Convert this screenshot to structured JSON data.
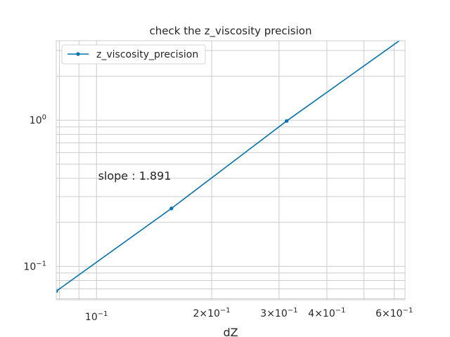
{
  "chart_data": {
    "type": "line",
    "title": "check the z_viscosity precision",
    "xlabel": "dZ",
    "ylabel": "",
    "xscale": "log",
    "yscale": "log",
    "xlim": [
      0.0785,
      0.64
    ],
    "ylim": [
      0.059,
      3.5
    ],
    "grid": "on (major and minor)",
    "legend_position": "top-left",
    "x_ticks": [
      {
        "value": 0.1,
        "base": "10",
        "exp": "−1"
      },
      {
        "value": 0.2,
        "base": "2×10",
        "exp": "−1"
      },
      {
        "value": 0.3,
        "base": "3×10",
        "exp": "−1"
      },
      {
        "value": 0.4,
        "base": "4×10",
        "exp": "−1"
      },
      {
        "value": 0.6,
        "base": "6×10",
        "exp": "−1"
      }
    ],
    "y_ticks": [
      {
        "value": 0.1,
        "base": "10",
        "exp": "−1"
      },
      {
        "value": 1.0,
        "base": "10",
        "exp": "0"
      }
    ],
    "series": [
      {
        "name": "z_viscosity_precision",
        "color": "#0072b2",
        "x": [
          0.0785,
          0.157,
          0.314,
          0.628
        ],
        "y": [
          0.0676,
          0.249,
          0.988,
          3.6
        ]
      }
    ],
    "annotations": [
      {
        "text": "slope : 1.891",
        "x": 0.101,
        "y": 0.392
      }
    ]
  }
}
